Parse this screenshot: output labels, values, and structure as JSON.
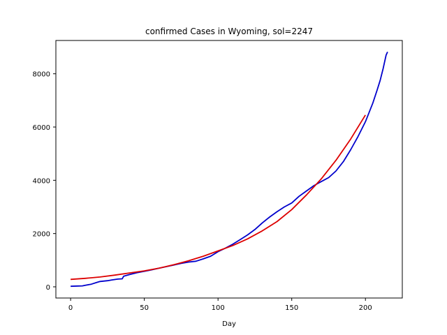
{
  "chart_data": {
    "type": "line",
    "title": "confirmed Cases in Wyoming, sol=2247",
    "xlabel": "Day",
    "ylabel": "",
    "xlim": [
      -10,
      225
    ],
    "ylim": [
      -420,
      9250
    ],
    "x_ticks": [
      0,
      50,
      100,
      150,
      200
    ],
    "y_ticks": [
      0,
      2000,
      4000,
      6000,
      8000
    ],
    "grid": false,
    "legend": "none",
    "series": [
      {
        "color": "#0000cc",
        "points": [
          [
            0,
            20
          ],
          [
            5,
            30
          ],
          [
            8,
            35
          ],
          [
            10,
            60
          ],
          [
            14,
            100
          ],
          [
            18,
            170
          ],
          [
            20,
            200
          ],
          [
            25,
            230
          ],
          [
            28,
            260
          ],
          [
            32,
            290
          ],
          [
            35,
            300
          ],
          [
            36,
            400
          ],
          [
            40,
            460
          ],
          [
            45,
            530
          ],
          [
            50,
            580
          ],
          [
            55,
            640
          ],
          [
            60,
            700
          ],
          [
            65,
            760
          ],
          [
            70,
            820
          ],
          [
            75,
            880
          ],
          [
            80,
            930
          ],
          [
            85,
            960
          ],
          [
            90,
            1050
          ],
          [
            95,
            1150
          ],
          [
            100,
            1320
          ],
          [
            105,
            1450
          ],
          [
            110,
            1600
          ],
          [
            115,
            1770
          ],
          [
            120,
            1950
          ],
          [
            125,
            2150
          ],
          [
            130,
            2400
          ],
          [
            135,
            2620
          ],
          [
            140,
            2820
          ],
          [
            145,
            3000
          ],
          [
            150,
            3150
          ],
          [
            155,
            3400
          ],
          [
            160,
            3600
          ],
          [
            165,
            3800
          ],
          [
            170,
            3950
          ],
          [
            175,
            4100
          ],
          [
            180,
            4350
          ],
          [
            185,
            4700
          ],
          [
            190,
            5150
          ],
          [
            195,
            5650
          ],
          [
            200,
            6200
          ],
          [
            205,
            6900
          ],
          [
            208,
            7400
          ],
          [
            210,
            7750
          ],
          [
            212,
            8200
          ],
          [
            214,
            8700
          ],
          [
            215,
            8820
          ]
        ]
      },
      {
        "color": "#dd0000",
        "points": [
          [
            0,
            280
          ],
          [
            10,
            320
          ],
          [
            20,
            370
          ],
          [
            30,
            440
          ],
          [
            40,
            520
          ],
          [
            50,
            600
          ],
          [
            60,
            700
          ],
          [
            70,
            830
          ],
          [
            80,
            980
          ],
          [
            90,
            1150
          ],
          [
            100,
            1350
          ],
          [
            110,
            1550
          ],
          [
            120,
            1800
          ],
          [
            130,
            2100
          ],
          [
            140,
            2450
          ],
          [
            150,
            2900
          ],
          [
            160,
            3450
          ],
          [
            170,
            4050
          ],
          [
            180,
            4750
          ],
          [
            190,
            5550
          ],
          [
            200,
            6450
          ]
        ]
      }
    ]
  }
}
